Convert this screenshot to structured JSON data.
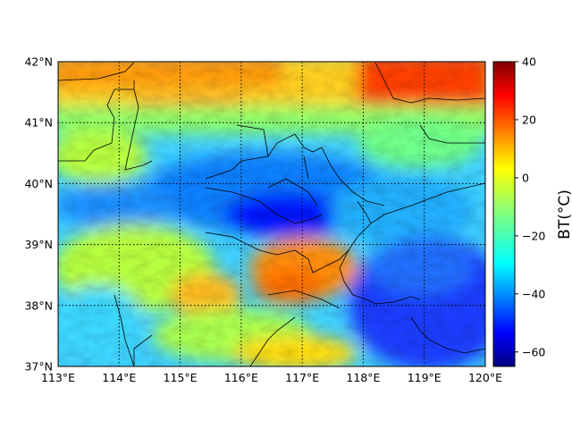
{
  "chart_data": {
    "type": "heatmap",
    "title": "",
    "map": {
      "lon_range": [
        113,
        120
      ],
      "lat_range": [
        37,
        42
      ],
      "x_ticks": [
        "113°E",
        "114°E",
        "115°E",
        "116°E",
        "117°E",
        "118°E",
        "119°E",
        "120°E"
      ],
      "y_ticks": [
        "37°N",
        "38°N",
        "39°N",
        "40°N",
        "41°N",
        "42°N"
      ],
      "gridlines": "dotted",
      "features": "province and coastline borders (black)"
    },
    "colorbar": {
      "label": "BT(°C)",
      "range": [
        -65,
        40
      ],
      "ticks": [
        "40",
        "20",
        "0",
        "−20",
        "−40",
        "−60"
      ],
      "colormap": "jet"
    },
    "field_description_regions": [
      {
        "lon": [
          113,
          120
        ],
        "lat": [
          41.2,
          42
        ],
        "value": 15
      },
      {
        "lon": [
          118.5,
          120
        ],
        "lat": [
          41.2,
          42
        ],
        "value": 30
      },
      {
        "lon": [
          115.5,
          118.5
        ],
        "lat": [
          39.4,
          40.4
        ],
        "value": -45
      },
      {
        "lon": [
          118,
          120
        ],
        "lat": [
          37,
          38.6
        ],
        "value": -45
      },
      {
        "lon": [
          116.3,
          118
        ],
        "lat": [
          37.9,
          38.9
        ],
        "value": 15
      }
    ]
  }
}
